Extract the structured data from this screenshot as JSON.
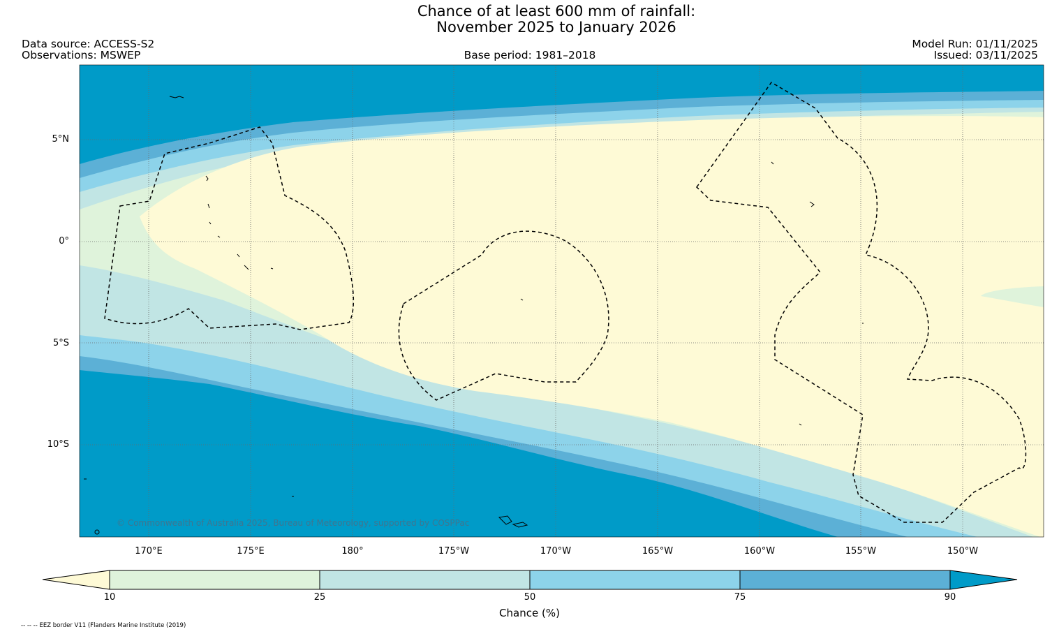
{
  "title_line1": "Chance of at least 600 mm of rainfall:",
  "title_line2": "November 2025 to January 2026",
  "data_source": "Data source: ACCESS-S2",
  "observations": "Observations: MSWEP",
  "base_period": "Base period: 1981–2018",
  "model_run": "Model Run: 01/11/2025",
  "issued": "Issued: 03/11/2025",
  "copyright": "© Commonwealth of Australia 2025, Bureau of Meteorology, supported by COSPPac",
  "latitude_labels": [
    "5°N",
    "0°",
    "5°S",
    "10°S"
  ],
  "longitude_labels": [
    "170°E",
    "175°E",
    "180°",
    "175°W",
    "170°W",
    "165°W",
    "160°W",
    "155°W",
    "150°W"
  ],
  "colorbar": {
    "title": "Chance (%)",
    "ticks": [
      "10",
      "25",
      "50",
      "75",
      "90"
    ],
    "colors": [
      "#fefad6",
      "#dff3db",
      "#c1e5e4",
      "#8dd3ea",
      "#5cb0d6",
      "#009bc8"
    ]
  },
  "footnote": "-- -- -- EEZ border V11 (Flanders Marine Institute (2019)"
}
